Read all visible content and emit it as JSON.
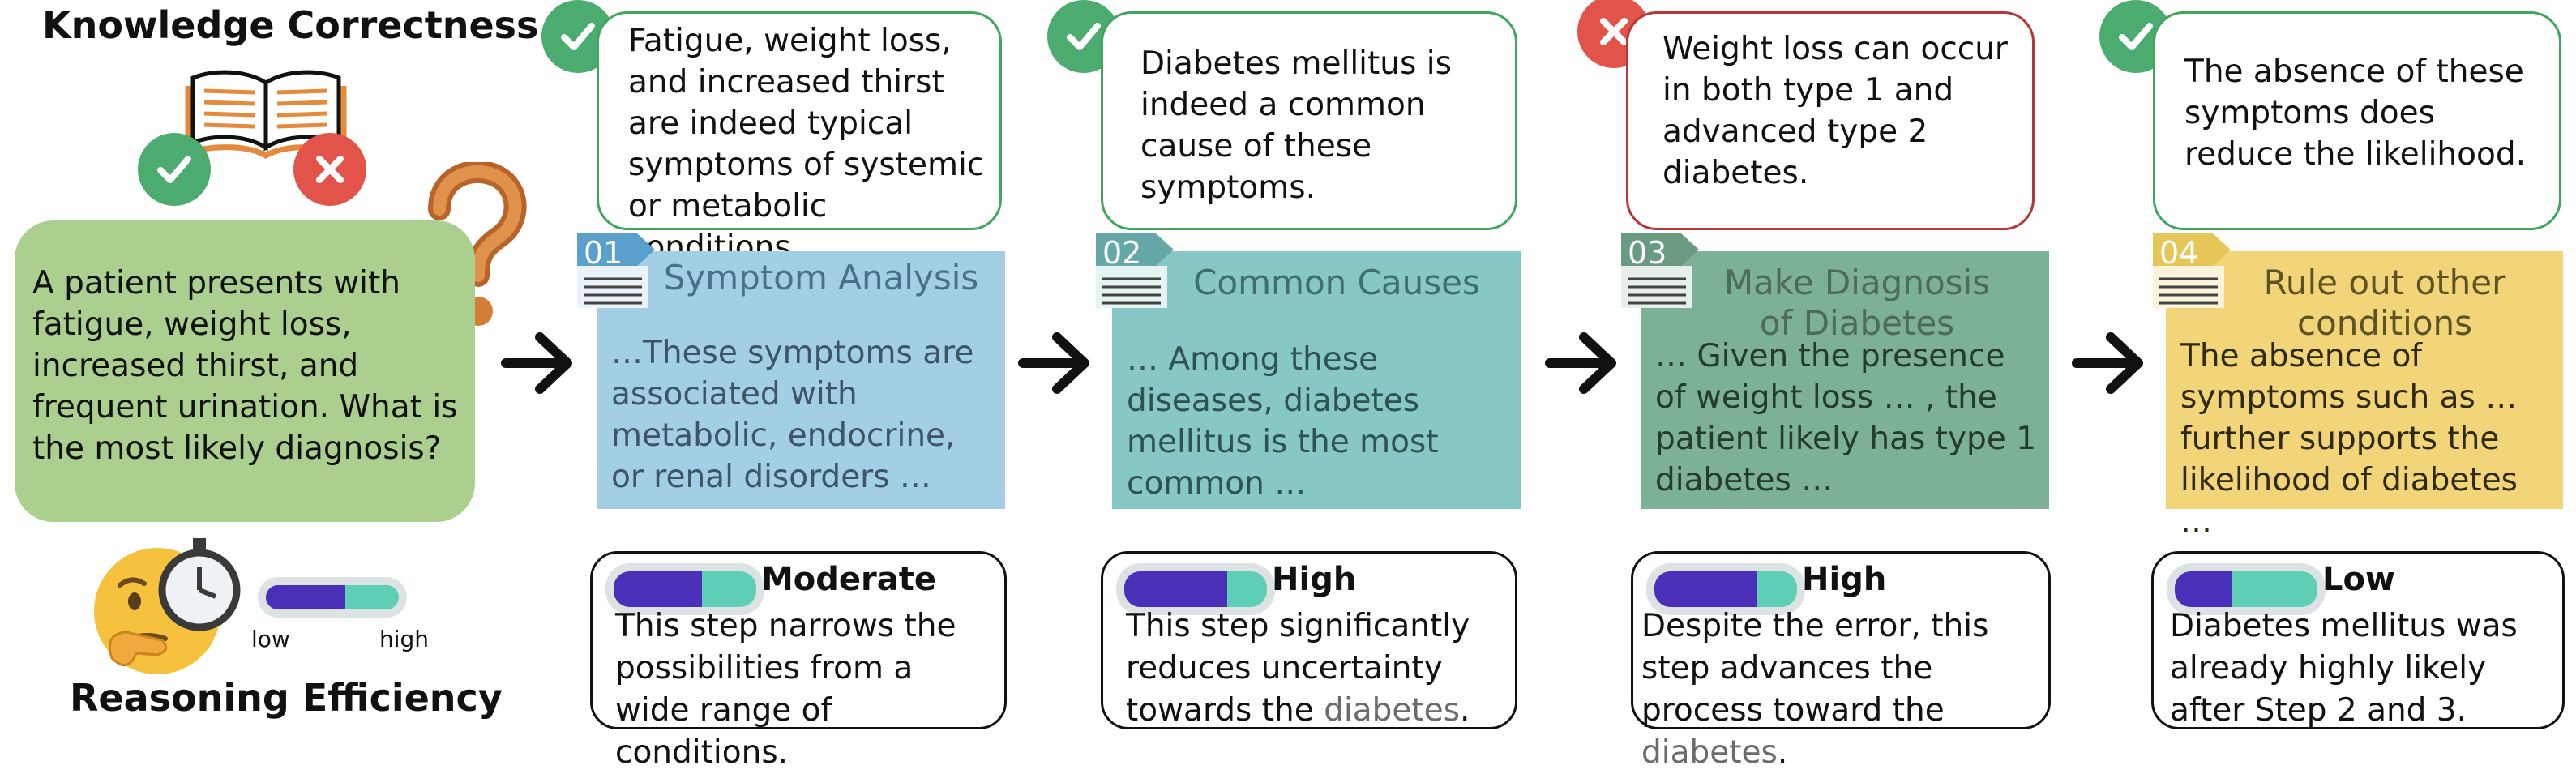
{
  "legend": {
    "knowledge_title": "Knowledge Correctness",
    "efficiency_title": "Reasoning Efficiency",
    "bar_low_label": "low",
    "bar_high_label": "high",
    "bar_level": 0.6
  },
  "question": "A patient presents with fatigue, weight loss, increased thirst, and frequent urination. What is the most likely diagnosis?",
  "colors": {
    "correct": "#4cac6f",
    "incorrect": "#e2544a",
    "question_bg": "#abcf8f",
    "step1": "#a3cfe5",
    "step2": "#87c7c6",
    "step3": "#7db196",
    "step4": "#f1d578",
    "bar_fill": "#4a2fb8",
    "bar_track": "#5ecfb4"
  },
  "steps": [
    {
      "number": "01",
      "title": "Symptom Analysis",
      "body": "…These symptoms are associated with metabolic, endocrine, or renal disorders …",
      "feedback": "Fatigue, weight loss, and increased thirst are indeed typical symptoms of systemic or metabolic conditions.",
      "correct": true,
      "efficiency": {
        "level": "Moderate",
        "fill": 0.62,
        "text_before": "This step narrows the possibilities from a wide range of conditions.",
        "highlight": "",
        "text_after": ""
      }
    },
    {
      "number": "02",
      "title": "Common Causes",
      "body": "… Among these diseases, diabetes mellitus is the most common  …",
      "feedback": "Diabetes mellitus is indeed a common cause of these symptoms.",
      "correct": true,
      "efficiency": {
        "level": "High",
        "fill": 0.72,
        "text_before": "This step significantly reduces uncertainty towards the ",
        "highlight": "diabetes",
        "text_after": "."
      }
    },
    {
      "number": "03",
      "title": "Make Diagnosis of Diabetes",
      "body": "… Given the presence of weight loss … , the patient likely has type 1 diabetes …",
      "feedback": "Weight loss can occur in both type 1 and advanced type 2 diabetes.",
      "correct": false,
      "efficiency": {
        "level": "High",
        "fill": 0.72,
        "text_before": "Despite the error, this step advances the process toward the ",
        "highlight": "diabetes",
        "text_after": "."
      }
    },
    {
      "number": "04",
      "title": "Rule out other conditions",
      "body": "The absence of symptoms such as … further supports the likelihood of diabetes …",
      "feedback": "The absence of these symptoms does reduce the likelihood.",
      "correct": true,
      "efficiency": {
        "level": "Low",
        "fill": 0.4,
        "text_before": "Diabetes mellitus was already highly likely after Step 2 and 3.",
        "highlight": "",
        "text_after": ""
      }
    }
  ]
}
